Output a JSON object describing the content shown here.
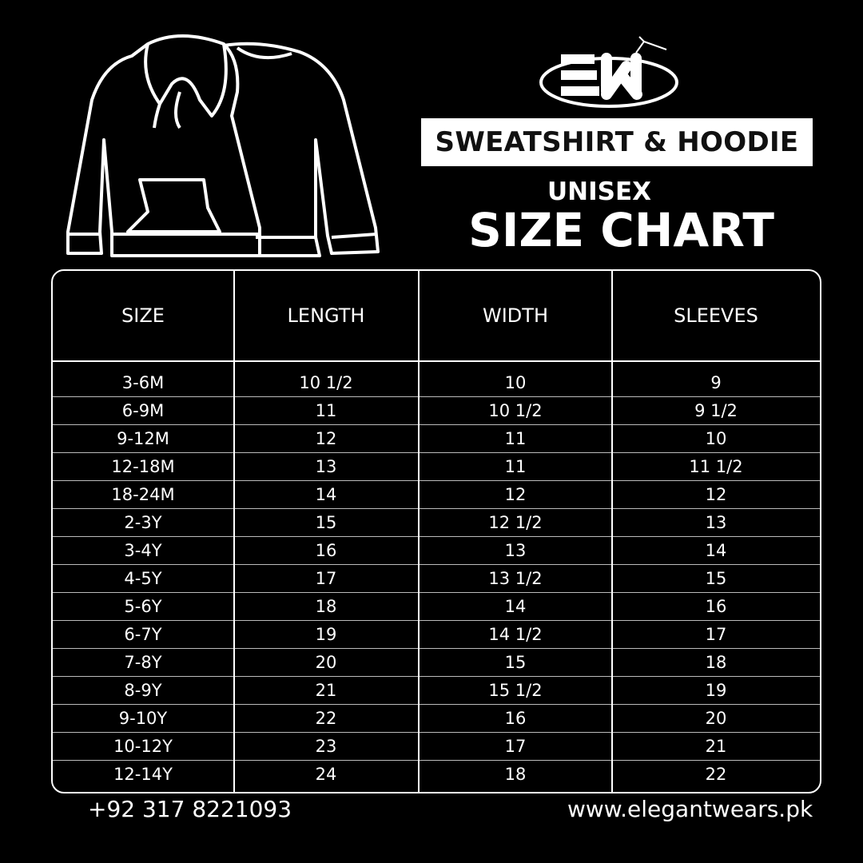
{
  "brand": {
    "logo_text": "EW"
  },
  "title": "SWEATSHIRT & HOODIE",
  "subtitle": "UNISEX",
  "chart_title": "SIZE CHART",
  "table": {
    "headers": [
      "SIZE",
      "LENGTH",
      "WIDTH",
      "SLEEVES"
    ],
    "rows": [
      [
        "3-6M",
        "10 1/2",
        "10",
        "9"
      ],
      [
        "6-9M",
        "11",
        "10 1/2",
        "9 1/2"
      ],
      [
        "9-12M",
        "12",
        "11",
        "10"
      ],
      [
        "12-18M",
        "13",
        "11",
        "11 1/2"
      ],
      [
        "18-24M",
        "14",
        "12",
        "12"
      ],
      [
        "2-3Y",
        "15",
        "12 1/2",
        "13"
      ],
      [
        "3-4Y",
        "16",
        "13",
        "14"
      ],
      [
        "4-5Y",
        "17",
        "13 1/2",
        "15"
      ],
      [
        "5-6Y",
        "18",
        "14",
        "16"
      ],
      [
        "6-7Y",
        "19",
        "14 1/2",
        "17"
      ],
      [
        "7-8Y",
        "20",
        "15",
        "18"
      ],
      [
        "8-9Y",
        "21",
        "15 1/2",
        "19"
      ],
      [
        "9-10Y",
        "22",
        "16",
        "20"
      ],
      [
        "10-12Y",
        "23",
        "17",
        "21"
      ],
      [
        "12-14Y",
        "24",
        "18",
        "22"
      ]
    ]
  },
  "footer": {
    "phone": "+92 317 8221093",
    "website": "www.elegantwears.pk"
  },
  "colors": {
    "background": "#000000",
    "foreground": "#ffffff"
  }
}
